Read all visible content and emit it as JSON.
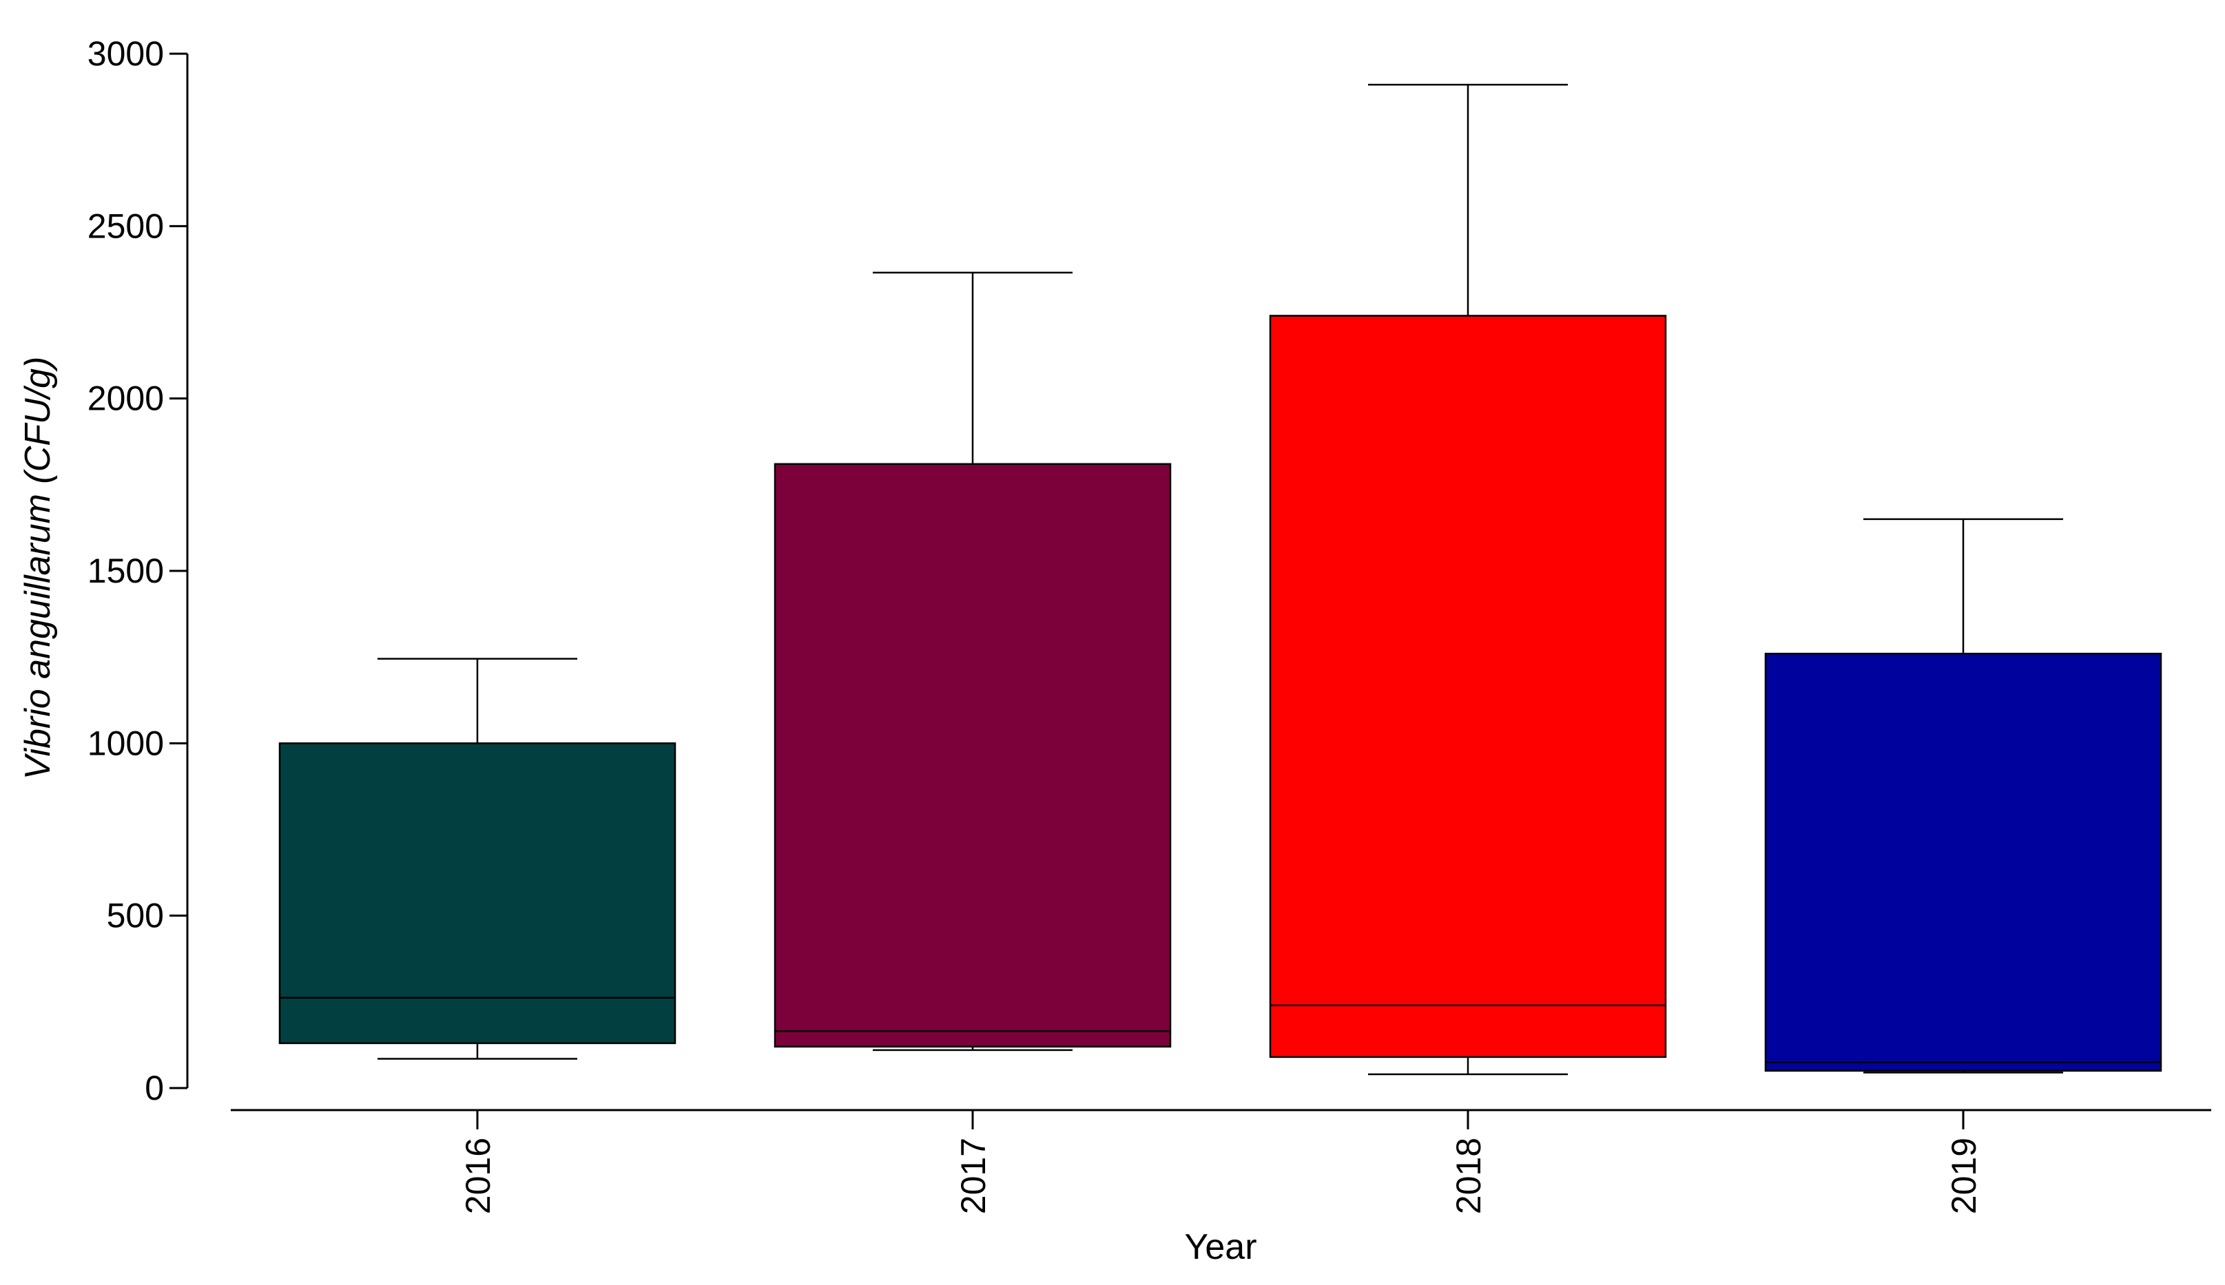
{
  "chart_data": {
    "type": "box",
    "xlabel": "Year",
    "ylabel": "Vibrio anguillarum (CFU/g)",
    "ylim": [
      0,
      3000
    ],
    "yticks": [
      0,
      500,
      1000,
      1500,
      2000,
      2500,
      3000
    ],
    "categories": [
      "2016",
      "2017",
      "2018",
      "2019"
    ],
    "boxes": [
      {
        "category": "2016",
        "whisker_low": 85,
        "q1": 130,
        "median": 262,
        "q3": 1000,
        "whisker_high": 1245,
        "color": "#023f40"
      },
      {
        "category": "2017",
        "whisker_low": 110,
        "q1": 120,
        "median": 165,
        "q3": 1810,
        "whisker_high": 2365,
        "color": "#7c003a"
      },
      {
        "category": "2018",
        "whisker_low": 40,
        "q1": 90,
        "median": 240,
        "q3": 2240,
        "whisker_high": 2910,
        "color": "#fe0000"
      },
      {
        "category": "2019",
        "whisker_low": 45,
        "q1": 50,
        "median": 75,
        "q3": 1260,
        "whisker_high": 1650,
        "color": "#00029e"
      }
    ],
    "grid": false,
    "legend": "none"
  }
}
